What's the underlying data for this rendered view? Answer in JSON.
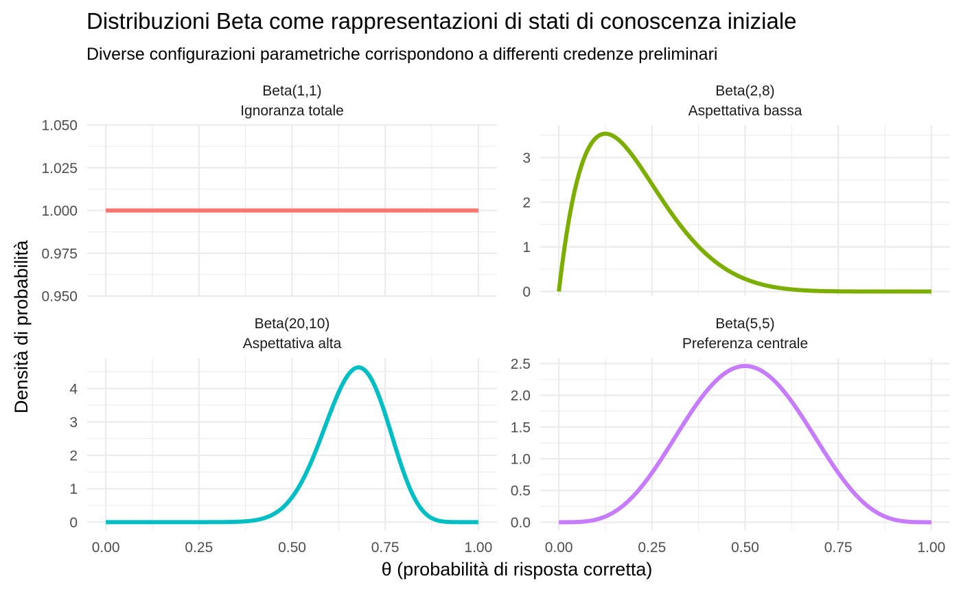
{
  "chart_data": {
    "type": "line",
    "title": "Distribuzioni Beta come rappresentazioni di stati di conoscenza iniziale",
    "subtitle": "Diverse configurazioni parametriche corrispondono a differenti credenze preliminari",
    "xlabel": "θ  (probabilità di risposta corretta)",
    "ylabel": "Densità di probabilità",
    "grid": true,
    "legend": "none",
    "x_ticks": [
      "0.00",
      "0.25",
      "0.50",
      "0.75",
      "1.00"
    ],
    "facets": [
      {
        "strip": [
          "Beta(1,1)",
          "Ignoranza totale"
        ],
        "alpha": 1,
        "beta": 1,
        "color": "#F8766D",
        "ylim": [
          0.95,
          1.05
        ],
        "y_ticks": [
          {
            "value": 0.95,
            "label": "0.950"
          },
          {
            "value": 0.975,
            "label": "0.975"
          },
          {
            "value": 1.0,
            "label": "1.000"
          },
          {
            "value": 1.025,
            "label": "1.025"
          },
          {
            "value": 1.05,
            "label": "1.050"
          }
        ]
      },
      {
        "strip": [
          "Beta(2,8)",
          "Aspettativa bassa"
        ],
        "alpha": 2,
        "beta": 8,
        "color": "#7CAE00",
        "ylim": [
          -0.1,
          3.73
        ],
        "y_ticks": [
          {
            "value": 0,
            "label": "0"
          },
          {
            "value": 1,
            "label": "1"
          },
          {
            "value": 2,
            "label": "2"
          },
          {
            "value": 3,
            "label": "3"
          }
        ]
      },
      {
        "strip": [
          "Beta(20,10)",
          "Aspettativa alta"
        ],
        "alpha": 20,
        "beta": 10,
        "color": "#00BFC4",
        "ylim": [
          -0.24,
          4.9
        ],
        "y_ticks": [
          {
            "value": 0,
            "label": "0"
          },
          {
            "value": 1,
            "label": "1"
          },
          {
            "value": 2,
            "label": "2"
          },
          {
            "value": 3,
            "label": "3"
          },
          {
            "value": 4,
            "label": "4"
          }
        ]
      },
      {
        "strip": [
          "Beta(5,5)",
          "Preferenza centrale"
        ],
        "alpha": 5,
        "beta": 5,
        "color": "#C77CFF",
        "ylim": [
          -0.125,
          2.58
        ],
        "y_ticks": [
          {
            "value": 0,
            "label": "0.0"
          },
          {
            "value": 0.5,
            "label": "0.5"
          },
          {
            "value": 1.0,
            "label": "1.0"
          },
          {
            "value": 1.5,
            "label": "1.5"
          },
          {
            "value": 2.0,
            "label": "2.0"
          },
          {
            "value": 2.5,
            "label": "2.5"
          }
        ]
      }
    ]
  }
}
